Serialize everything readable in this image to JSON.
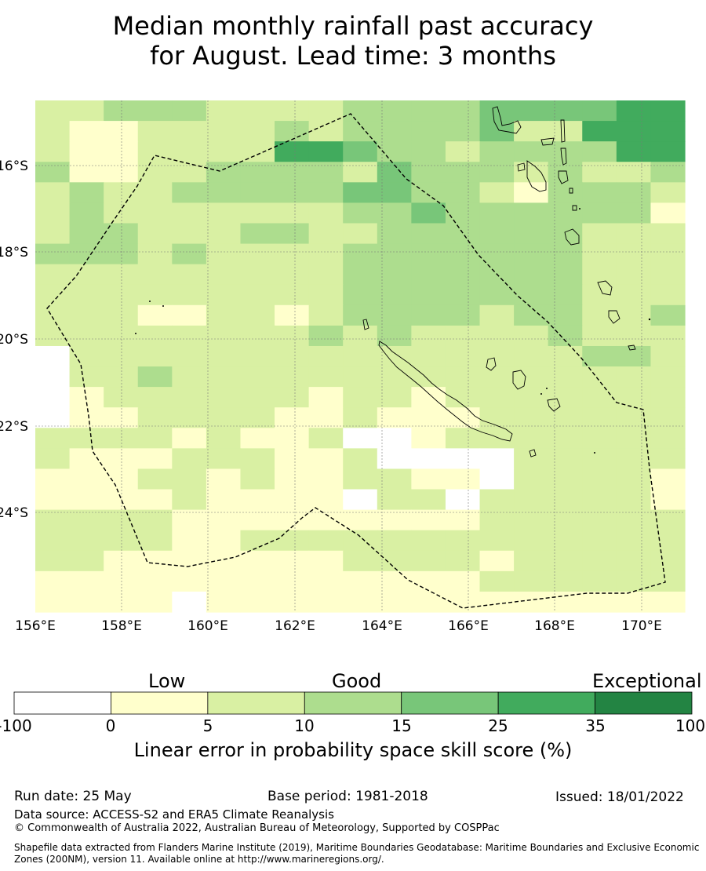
{
  "title_line1": "Median monthly rainfall past accuracy",
  "title_line2": "for August. Lead time: 3 months",
  "map": {
    "lon_labels": [
      "156°E",
      "158°E",
      "160°E",
      "162°E",
      "164°E",
      "166°E",
      "168°E",
      "170°E"
    ],
    "lat_labels": [
      "16°S",
      "18°S",
      "20°S",
      "22°S",
      "24°S"
    ],
    "grid_rows": [
      "1122211112222333344",
      "1001111212222311444",
      "1001111443221222244",
      "2001122221322212112",
      "1211222223322102221",
      "1211111112232222220",
      "1221112211222222111",
      "2221211112222222111",
      "1111111112222222111",
      "1111111112222222111",
      "1110011012222122112",
      "1111111121211112111",
      "X111111111111111221",
      "X112111111111111111",
      "X011111101101111111",
      "X001111001000111111",
      "111101001XX01111111",
      "1000111001XXXX11111",
      "0001101001100X11110",
      "000010000X11X111110",
      "1111000000000111111",
      "1111001111111111111",
      "1100000001111011111",
      "0000000000000111111",
      "0000X00000000000000"
    ]
  },
  "legend": {
    "categories": [
      "Low",
      "Good",
      "Exceptional"
    ],
    "bins": [
      {
        "from": "-100",
        "to": "0",
        "color": "#ffffff"
      },
      {
        "from": "0",
        "to": "5",
        "color": "#ffffcc"
      },
      {
        "from": "5",
        "to": "10",
        "color": "#d9f0a3"
      },
      {
        "from": "10",
        "to": "15",
        "color": "#addd8e"
      },
      {
        "from": "15",
        "to": "25",
        "color": "#78c679"
      },
      {
        "from": "25",
        "to": "35",
        "color": "#41ab5d"
      },
      {
        "from": "35",
        "to": "100",
        "color": "#238443"
      }
    ],
    "ticks": [
      "-100",
      "0",
      "5",
      "10",
      "15",
      "25",
      "35",
      "100"
    ],
    "label": "Linear error in probability space skill score (%)"
  },
  "footer": {
    "run_date": "Run date: 25 May",
    "base_period": "Base period: 1981-2018",
    "issued": "Issued: 18/01/2022",
    "data_source": "Data source: ACCESS-S2 and ERA5 Climate Reanalysis",
    "copyright": "© Commonwealth of Australia 2022, Australian Bureau of Meteorology, Supported by COSPPac",
    "shapefile_line1": "Shapefile data extracted from Flanders Marine Institute (2019), Maritime Boundaries Geodatabase: Maritime Boundaries and Exclusive Economic",
    "shapefile_line2": "Zones (200NM), version 11. Available online at http://www.marineregions.org/."
  }
}
